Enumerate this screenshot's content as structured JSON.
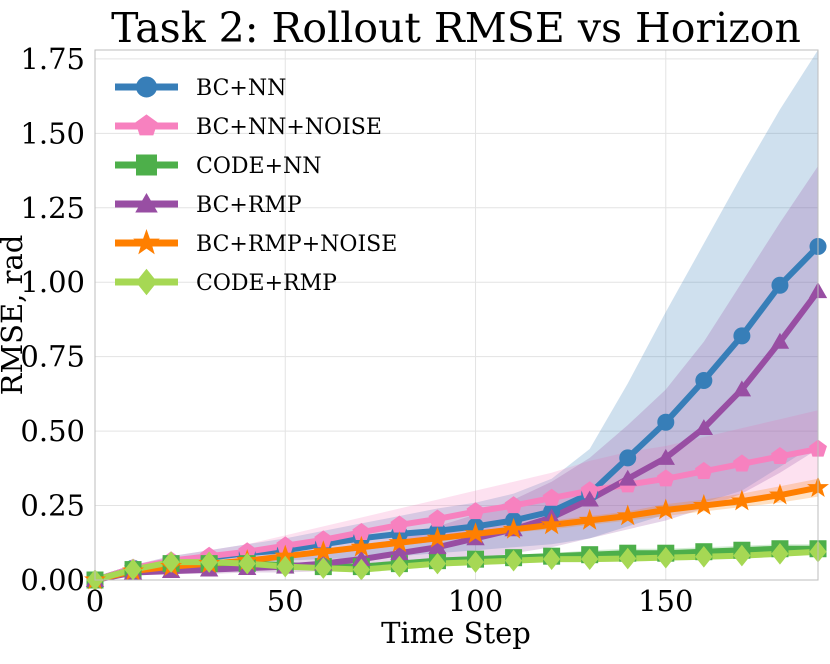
{
  "chart_data": {
    "type": "line",
    "title": "Task 2: Rollout RMSE vs Horizon",
    "xlabel": "Time Step",
    "ylabel": "RMSE, rad",
    "xlim": [
      0,
      190
    ],
    "ylim": [
      0,
      1.78
    ],
    "xticks": [
      0,
      50,
      100,
      150
    ],
    "xtick_labels": [
      "0",
      "50",
      "100",
      "150"
    ],
    "yticks": [
      0,
      0.25,
      0.5,
      0.75,
      1.0,
      1.25,
      1.5,
      1.75
    ],
    "ytick_labels": [
      "0.00",
      "0.25",
      "0.50",
      "0.75",
      "1.00",
      "1.25",
      "1.50",
      "1.75"
    ],
    "grid": true,
    "legend_position": "top-left",
    "x": [
      0,
      10,
      20,
      30,
      40,
      50,
      60,
      70,
      80,
      90,
      100,
      110,
      120,
      130,
      140,
      150,
      160,
      170,
      180,
      190
    ],
    "series": [
      {
        "name": "BC+NN",
        "color": "#377eb8",
        "marker": "circle",
        "values": [
          0.0,
          0.04,
          0.06,
          0.075,
          0.09,
          0.1,
          0.12,
          0.14,
          0.155,
          0.165,
          0.18,
          0.2,
          0.23,
          0.29,
          0.41,
          0.53,
          0.67,
          0.82,
          0.99,
          1.12
        ],
        "band_lower": [
          0.0,
          0.03,
          0.04,
          0.05,
          0.06,
          0.065,
          0.07,
          0.075,
          0.08,
          0.09,
          0.1,
          0.11,
          0.12,
          0.14,
          0.18,
          0.22,
          0.26,
          0.3,
          0.38,
          0.46
        ],
        "band_upper": [
          0.0,
          0.05,
          0.08,
          0.1,
          0.12,
          0.14,
          0.165,
          0.19,
          0.215,
          0.24,
          0.26,
          0.29,
          0.34,
          0.44,
          0.66,
          0.9,
          1.13,
          1.36,
          1.58,
          1.78
        ]
      },
      {
        "name": "BC+NN+NOISE",
        "color": "#f781bf",
        "marker": "pentagon",
        "values": [
          0.0,
          0.04,
          0.065,
          0.08,
          0.095,
          0.115,
          0.135,
          0.16,
          0.185,
          0.205,
          0.23,
          0.25,
          0.275,
          0.3,
          0.32,
          0.34,
          0.365,
          0.39,
          0.415,
          0.44
        ],
        "band_lower": [
          0.0,
          0.03,
          0.05,
          0.06,
          0.07,
          0.08,
          0.09,
          0.1,
          0.115,
          0.13,
          0.15,
          0.17,
          0.19,
          0.2,
          0.21,
          0.23,
          0.24,
          0.26,
          0.28,
          0.3
        ],
        "band_upper": [
          0.0,
          0.05,
          0.08,
          0.1,
          0.12,
          0.15,
          0.18,
          0.21,
          0.24,
          0.27,
          0.3,
          0.33,
          0.36,
          0.4,
          0.43,
          0.45,
          0.48,
          0.51,
          0.54,
          0.57
        ]
      },
      {
        "name": "CODE+NN",
        "color": "#4daf4a",
        "marker": "square",
        "values": [
          0.0,
          0.035,
          0.055,
          0.055,
          0.055,
          0.05,
          0.045,
          0.045,
          0.055,
          0.065,
          0.07,
          0.075,
          0.08,
          0.085,
          0.09,
          0.09,
          0.095,
          0.1,
          0.105,
          0.105
        ],
        "band_lower": [
          0.0,
          0.03,
          0.045,
          0.045,
          0.045,
          0.04,
          0.035,
          0.035,
          0.045,
          0.055,
          0.06,
          0.065,
          0.07,
          0.07,
          0.075,
          0.075,
          0.08,
          0.085,
          0.09,
          0.09
        ],
        "band_upper": [
          0.0,
          0.04,
          0.065,
          0.065,
          0.065,
          0.06,
          0.055,
          0.055,
          0.065,
          0.075,
          0.08,
          0.085,
          0.09,
          0.1,
          0.105,
          0.105,
          0.11,
          0.115,
          0.12,
          0.12
        ]
      },
      {
        "name": "BC+RMP",
        "color": "#984ea3",
        "marker": "triangle",
        "values": [
          0.0,
          0.025,
          0.03,
          0.035,
          0.04,
          0.045,
          0.055,
          0.07,
          0.09,
          0.11,
          0.14,
          0.17,
          0.21,
          0.27,
          0.34,
          0.41,
          0.51,
          0.64,
          0.8,
          0.97
        ],
        "band_lower": [
          0.0,
          0.02,
          0.02,
          0.02,
          0.025,
          0.025,
          0.03,
          0.035,
          0.045,
          0.055,
          0.07,
          0.09,
          0.11,
          0.14,
          0.17,
          0.2,
          0.24,
          0.29,
          0.36,
          0.44
        ],
        "band_upper": [
          0.0,
          0.03,
          0.04,
          0.05,
          0.06,
          0.07,
          0.085,
          0.11,
          0.14,
          0.18,
          0.22,
          0.27,
          0.33,
          0.41,
          0.52,
          0.64,
          0.8,
          1.0,
          1.2,
          1.39
        ]
      },
      {
        "name": "BC+RMP+NOISE",
        "color": "#ff7f00",
        "marker": "star",
        "values": [
          0.0,
          0.03,
          0.045,
          0.055,
          0.065,
          0.08,
          0.095,
          0.11,
          0.125,
          0.14,
          0.155,
          0.17,
          0.185,
          0.2,
          0.215,
          0.235,
          0.25,
          0.265,
          0.285,
          0.31
        ],
        "band_lower": [
          0.0,
          0.025,
          0.04,
          0.05,
          0.06,
          0.07,
          0.085,
          0.1,
          0.115,
          0.13,
          0.145,
          0.16,
          0.17,
          0.185,
          0.2,
          0.215,
          0.23,
          0.245,
          0.26,
          0.28
        ],
        "band_upper": [
          0.0,
          0.035,
          0.05,
          0.06,
          0.07,
          0.09,
          0.105,
          0.12,
          0.135,
          0.15,
          0.165,
          0.18,
          0.2,
          0.215,
          0.23,
          0.255,
          0.27,
          0.29,
          0.315,
          0.34
        ]
      },
      {
        "name": "CODE+RMP",
        "color": "#a6d854",
        "marker": "diamond",
        "values": [
          0.0,
          0.035,
          0.06,
          0.06,
          0.055,
          0.045,
          0.04,
          0.035,
          0.045,
          0.055,
          0.06,
          0.065,
          0.07,
          0.07,
          0.072,
          0.075,
          0.078,
          0.082,
          0.088,
          0.095
        ],
        "band_lower": [
          0.0,
          0.03,
          0.05,
          0.05,
          0.045,
          0.035,
          0.03,
          0.025,
          0.035,
          0.045,
          0.05,
          0.055,
          0.06,
          0.06,
          0.062,
          0.065,
          0.068,
          0.072,
          0.078,
          0.085
        ],
        "band_upper": [
          0.0,
          0.04,
          0.07,
          0.07,
          0.065,
          0.055,
          0.05,
          0.045,
          0.055,
          0.065,
          0.07,
          0.075,
          0.08,
          0.08,
          0.082,
          0.085,
          0.088,
          0.092,
          0.098,
          0.105
        ]
      }
    ]
  }
}
